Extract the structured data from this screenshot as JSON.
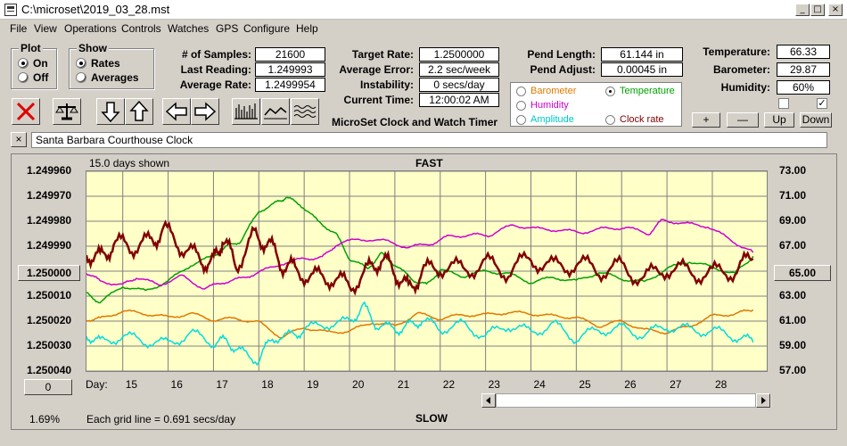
{
  "window": {
    "title": "C:\\microset\\2019_03_28.mst"
  },
  "menu": [
    "File",
    "View",
    "Operations",
    "Controls",
    "Watches",
    "GPS",
    "Configure",
    "Help"
  ],
  "plot_group": {
    "title": "Plot",
    "on": "On",
    "off": "Off",
    "selected": "On"
  },
  "show_group": {
    "title": "Show",
    "rates": "Rates",
    "averages": "Averages",
    "selected": "Rates"
  },
  "stats": {
    "samples_label": "# of Samples:",
    "samples": "21600",
    "last_label": "Last Reading:",
    "last": "1.249993",
    "avg_label": "Average Rate:",
    "avg": "1.2499954",
    "target_label": "Target Rate:",
    "target": "1.2500000",
    "error_label": "Average Error:",
    "error": "2.2 sec/week",
    "instab_label": "Instability:",
    "instab": "0 secs/day",
    "time_label": "Current Time:",
    "time": "12:00:02 AM",
    "pendlen_label": "Pend Length:",
    "pendlen": "61.144 in",
    "pendadj_label": "Pend Adjust:",
    "pendadj": "0.00045 in",
    "temp_label": "Temperature:",
    "temp": "66.33",
    "baro_label": "Barometer:",
    "baro": "29.87",
    "hum_label": "Humidity:",
    "hum": "60%"
  },
  "app_caption": "MicroSet Clock and Watch Timer",
  "legend": {
    "barometer": "Barometer",
    "temperature": "Temperature",
    "humidity": "Humidity",
    "amplitude": "Amplitude",
    "clockrate": "Clock rate",
    "selected": "Temperature"
  },
  "small_buttons": {
    "plus": "+",
    "minus": "—",
    "up": "Up",
    "down": "Down"
  },
  "colors": {
    "barometer": "#e07800",
    "temperature": "#00a000",
    "humidity": "#d000d0",
    "amplitude": "#00dcdc",
    "clockrate": "#800000"
  },
  "toolbar_icons": [
    "clear-icon",
    "balance-icon",
    "arrow-down-icon",
    "arrow-up-icon",
    "arrow-left-icon",
    "arrow-right-icon",
    "bar-graph-icon",
    "line-graph-icon",
    "wave-graph-icon"
  ],
  "clock_name": "Santa Barbara Courthouse Clock",
  "clear_name": "×",
  "chart_data": {
    "type": "line",
    "days_shown": "15.0 days shown",
    "top_label": "FAST",
    "bottom_label": "SLOW",
    "grid_note": "Each grid line = 0.691 secs/day",
    "percent": "1.69%",
    "xlabel_prefix": "Day:",
    "x_ticks": [
      "15",
      "16",
      "17",
      "18",
      "19",
      "20",
      "21",
      "22",
      "23",
      "24",
      "25",
      "26",
      "27",
      "28"
    ],
    "left_ticks": [
      "1.249960",
      "1.249970",
      "1.249980",
      "1.249990",
      "1.250000",
      "1.250010",
      "1.250020",
      "1.250030",
      "1.250040"
    ],
    "right_ticks": [
      "73.00",
      "71.00",
      "69.00",
      "67.00",
      "65.00",
      "63.00",
      "61.00",
      "59.00",
      "57.00"
    ],
    "left_center": "1.250000",
    "right_center": "65.00",
    "left_zero": "0",
    "ylim_left": [
      1.24996,
      1.25004
    ],
    "ylim_right": [
      57,
      73
    ],
    "xlim": [
      14.2,
      29.2
    ],
    "series": [
      {
        "key": "temperature",
        "points": [
          [
            14.2,
            63.2
          ],
          [
            14.5,
            62.5
          ],
          [
            15,
            63.8
          ],
          [
            15.5,
            63.4
          ],
          [
            16,
            64.2
          ],
          [
            16.5,
            65.5
          ],
          [
            17,
            66.2
          ],
          [
            17.3,
            67.0
          ],
          [
            17.6,
            67.4
          ],
          [
            18,
            69.8
          ],
          [
            18.4,
            70.5
          ],
          [
            18.6,
            70.9
          ],
          [
            18.9,
            70.4
          ],
          [
            19.3,
            69.0
          ],
          [
            19.7,
            68.0
          ],
          [
            20,
            66.0
          ],
          [
            20.4,
            65.2
          ],
          [
            20.7,
            66.4
          ],
          [
            21,
            65.5
          ],
          [
            21.4,
            64.3
          ],
          [
            21.7,
            63.9
          ],
          [
            22,
            65.1
          ],
          [
            22.5,
            64.6
          ],
          [
            23,
            65.0
          ],
          [
            23.5,
            64.8
          ],
          [
            24,
            64.1
          ],
          [
            24.5,
            64.5
          ],
          [
            25,
            64.2
          ],
          [
            25.5,
            64.9
          ],
          [
            26,
            64.4
          ],
          [
            26.5,
            64.1
          ],
          [
            27,
            65.2
          ],
          [
            27.5,
            65.8
          ],
          [
            28,
            65.3
          ],
          [
            28.5,
            64.8
          ],
          [
            28.9,
            66.2
          ]
        ]
      },
      {
        "key": "humidity",
        "points": [
          [
            14.2,
            64.9
          ],
          [
            14.5,
            64.2
          ],
          [
            15,
            63.9
          ],
          [
            15.3,
            64.5
          ],
          [
            15.8,
            63.9
          ],
          [
            16.3,
            64.6
          ],
          [
            16.8,
            63.6
          ],
          [
            17.2,
            64.1
          ],
          [
            17.6,
            64.4
          ],
          [
            18,
            64.9
          ],
          [
            18.5,
            65.6
          ],
          [
            19,
            66.0
          ],
          [
            19.4,
            66.1
          ],
          [
            19.7,
            67.1
          ],
          [
            20.2,
            67.6
          ],
          [
            20.8,
            67.4
          ],
          [
            21.3,
            66.9
          ],
          [
            21.8,
            67.2
          ],
          [
            22.2,
            67.8
          ],
          [
            22.7,
            67.9
          ],
          [
            23.1,
            67.9
          ],
          [
            23.6,
            68.7
          ],
          [
            24.1,
            68.4
          ],
          [
            24.6,
            68.3
          ],
          [
            25.1,
            68.1
          ],
          [
            25.6,
            68.4
          ],
          [
            26.1,
            68.5
          ],
          [
            26.6,
            68.0
          ],
          [
            26.9,
            69.1
          ],
          [
            27.4,
            68.8
          ],
          [
            27.9,
            68.6
          ],
          [
            28.4,
            67.5
          ],
          [
            28.9,
            66.5
          ]
        ]
      },
      {
        "key": "barometer",
        "points": [
          [
            14.2,
            61.1
          ],
          [
            14.5,
            61.2
          ],
          [
            15,
            61.8
          ],
          [
            15.5,
            61.6
          ],
          [
            16,
            61.3
          ],
          [
            16.5,
            61.6
          ],
          [
            17,
            61.1
          ],
          [
            17.5,
            61.2
          ],
          [
            18,
            60.9
          ],
          [
            18.5,
            59.7
          ],
          [
            19,
            60.5
          ],
          [
            19.5,
            60.1
          ],
          [
            20,
            60.2
          ],
          [
            20.5,
            60.9
          ],
          [
            21,
            60.6
          ],
          [
            21.5,
            61.6
          ],
          [
            22,
            61.2
          ],
          [
            22.5,
            61.5
          ],
          [
            23,
            61.5
          ],
          [
            23.5,
            61.7
          ],
          [
            24,
            61.6
          ],
          [
            24.5,
            61.4
          ],
          [
            25,
            61.3
          ],
          [
            25.5,
            60.6
          ],
          [
            26,
            61.0
          ],
          [
            26.5,
            60.3
          ],
          [
            27,
            60.1
          ],
          [
            27.5,
            60.6
          ],
          [
            28,
            61.4
          ],
          [
            28.5,
            61.6
          ],
          [
            28.9,
            61.9
          ]
        ]
      },
      {
        "key": "amplitude",
        "points": [
          [
            14.2,
            59.9
          ],
          [
            14.5,
            59.3
          ],
          [
            15,
            59.8
          ],
          [
            15.5,
            59.4
          ],
          [
            16,
            59.2
          ],
          [
            16.5,
            60.0
          ],
          [
            17,
            59.3
          ],
          [
            17.3,
            59.4
          ],
          [
            17.6,
            58.5
          ],
          [
            18,
            57.9
          ],
          [
            18.3,
            59.7
          ],
          [
            18.7,
            59.8
          ],
          [
            19,
            60.3
          ],
          [
            19.5,
            60.8
          ],
          [
            20,
            60.9
          ],
          [
            20.3,
            62.2
          ],
          [
            20.6,
            60.7
          ],
          [
            21,
            60.3
          ],
          [
            21.3,
            60.6
          ],
          [
            21.6,
            61.1
          ],
          [
            22,
            60.4
          ],
          [
            22.5,
            60.7
          ],
          [
            23,
            59.8
          ],
          [
            23.5,
            60.7
          ],
          [
            24,
            60.1
          ],
          [
            24.5,
            60.7
          ],
          [
            25,
            59.6
          ],
          [
            25.5,
            60.3
          ],
          [
            26,
            60.4
          ],
          [
            26.5,
            59.9
          ],
          [
            27,
            60.6
          ],
          [
            27.5,
            60.3
          ],
          [
            28,
            60.2
          ],
          [
            28.5,
            59.8
          ],
          [
            28.9,
            59.3
          ]
        ]
      },
      {
        "key": "clockrate",
        "points": [
          [
            14.2,
            66.5
          ],
          [
            14.5,
            66.0
          ],
          [
            14.8,
            67.2
          ],
          [
            15.2,
            67.0
          ],
          [
            15.6,
            67.3
          ],
          [
            15.9,
            68.3
          ],
          [
            16.3,
            67.0
          ],
          [
            16.7,
            65.9
          ],
          [
            17,
            65.7
          ],
          [
            17.2,
            67.6
          ],
          [
            17.5,
            65.5
          ],
          [
            17.9,
            67.8
          ],
          [
            18.2,
            67.3
          ],
          [
            18.5,
            65.6
          ],
          [
            18.8,
            65.1
          ],
          [
            19.2,
            64.5
          ],
          [
            19.6,
            64.5
          ],
          [
            20,
            63.8
          ],
          [
            20.4,
            65.0
          ],
          [
            20.7,
            66.0
          ],
          [
            21,
            65.0
          ],
          [
            21.3,
            63.5
          ],
          [
            21.6,
            64.9
          ],
          [
            22,
            65.4
          ],
          [
            22.5,
            65.1
          ],
          [
            23,
            65.6
          ],
          [
            23.5,
            65.0
          ],
          [
            24,
            66.0
          ],
          [
            24.5,
            65.3
          ],
          [
            25,
            65.6
          ],
          [
            25.5,
            65.1
          ],
          [
            26,
            65.3
          ],
          [
            26.5,
            64.4
          ],
          [
            27,
            65.3
          ],
          [
            27.5,
            64.9
          ],
          [
            28,
            64.8
          ],
          [
            28.5,
            65.1
          ],
          [
            28.9,
            66.0
          ]
        ]
      }
    ]
  }
}
